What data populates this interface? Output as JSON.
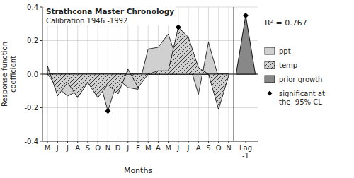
{
  "chart_data": {
    "type": "area",
    "title": "Strathcona Master Chronology",
    "subtitle": "Calibration 1946 -1992",
    "x_label": "Months",
    "y_label": "Response function\ncoefficient",
    "categories": [
      "M",
      "J",
      "J",
      "A",
      "S",
      "O",
      "N",
      "D",
      "J",
      "F",
      "M",
      "A",
      "M",
      "J",
      "J",
      "A",
      "S",
      "O",
      "N",
      "Lag\n-1"
    ],
    "series": [
      {
        "name": "ppt",
        "type": "area",
        "color": "#d0d0d0",
        "values": [
          0.0,
          -0.08,
          -0.13,
          -0.1,
          -0.04,
          0.0,
          -0.22,
          -0.03,
          -0.08,
          -0.09,
          0.15,
          0.16,
          0.24,
          0.06,
          0.08,
          -0.12,
          0.19,
          -0.02,
          -0.01,
          null
        ]
      },
      {
        "name": "temp",
        "type": "area",
        "color": "#d0d0d0",
        "values": [
          0.05,
          -0.13,
          -0.05,
          -0.14,
          -0.05,
          -0.14,
          -0.06,
          -0.12,
          0.03,
          -0.08,
          0.0,
          0.02,
          0.02,
          0.28,
          0.22,
          0.04,
          0.0,
          -0.21,
          -0.01,
          null
        ]
      },
      {
        "name": "prior growth",
        "type": "bar",
        "color": "#888888",
        "values": [
          null,
          null,
          null,
          null,
          null,
          null,
          null,
          null,
          null,
          null,
          null,
          null,
          null,
          null,
          null,
          null,
          null,
          null,
          null,
          0.35
        ]
      },
      {
        "name": "significant at\nthe  95% CL",
        "type": "scatter",
        "color": "#000000",
        "marker": "diamond",
        "values": [
          null,
          null,
          null,
          null,
          null,
          null,
          -0.22,
          null,
          null,
          null,
          null,
          null,
          null,
          0.28,
          null,
          null,
          null,
          null,
          null,
          0.35
        ]
      }
    ],
    "annotations": [
      "R² = 0.767"
    ],
    "ylim": [
      -0.4,
      0.4
    ],
    "yticks": [
      -0.4,
      -0.2,
      {
        "value": 0.0,
        "label": "0.0"
      },
      0.2,
      0.4
    ],
    "grid": true,
    "legend": "right"
  }
}
